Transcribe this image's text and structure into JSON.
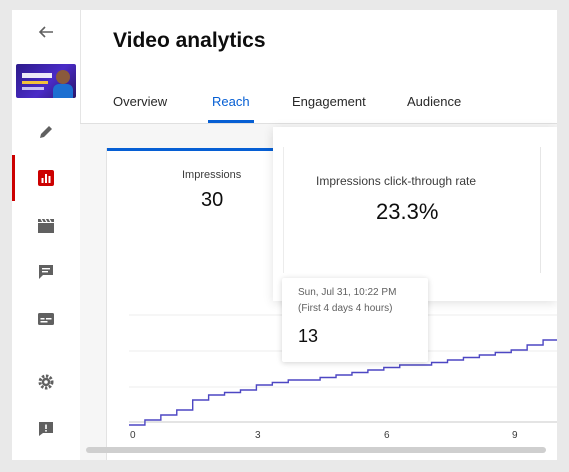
{
  "header": {
    "title": "Video analytics"
  },
  "rail": {
    "icons": [
      "back-arrow-icon",
      "video-thumbnail",
      "pencil-icon",
      "analytics-icon",
      "clapperboard-icon",
      "comment-icon",
      "subtitles-icon",
      "gear-icon",
      "feedback-icon"
    ],
    "active": "analytics-icon",
    "active_color": "#cc0000"
  },
  "tabs": [
    {
      "label": "Overview",
      "active": false
    },
    {
      "label": "Reach",
      "active": true
    },
    {
      "label": "Engagement",
      "active": false
    },
    {
      "label": "Audience",
      "active": false
    }
  ],
  "metrics": {
    "impressions": {
      "label": "Impressions",
      "value": "30"
    },
    "ctr": {
      "label": "Impressions click-through rate",
      "value": "23.3%"
    }
  },
  "tooltip": {
    "date": "Sun, Jul 31, 10:22 PM",
    "sub": "(First 4 days 4 hours)",
    "value": "13"
  },
  "chart_data": {
    "type": "line",
    "x_ticks": [
      "0",
      "3",
      "6",
      "9"
    ],
    "series": [
      {
        "values": [
          0,
          1,
          2,
          3,
          5,
          6,
          6.5,
          7,
          8,
          8.5,
          9,
          9,
          9.5,
          10,
          10.5,
          11,
          11.5,
          12,
          12,
          12.5,
          13,
          13.5,
          14,
          14.5,
          15,
          16,
          17,
          18
        ]
      }
    ],
    "line_color": "#4d47c3",
    "grid": true
  },
  "colors": {
    "accent": "#065fd4",
    "text": "#0d0d0d"
  }
}
